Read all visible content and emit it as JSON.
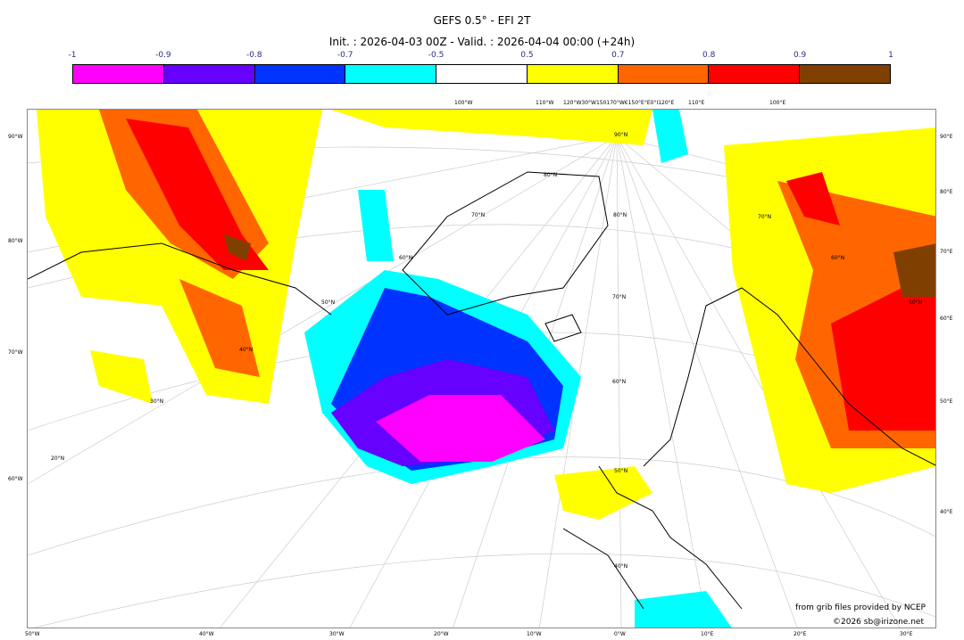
{
  "title": "GEFS 0.5° - EFI 2T",
  "subtitle": "Init. : 2026-04-03 00Z - Valid. : 2026-04-04 00:00 (+24h)",
  "colorbar": {
    "ticks": [
      "-1",
      "-0.9",
      "-0.8",
      "-0.7",
      "-0.5",
      "0.5",
      "0.7",
      "0.8",
      "0.9",
      "1"
    ],
    "colors": [
      "#ff00ff",
      "#6600ff",
      "#0033ff",
      "#00ffff",
      "#ffffff",
      "#ffff00",
      "#ff6600",
      "#ff0000",
      "#7f3f00"
    ]
  },
  "top_labels": [
    "100°W",
    "110°W",
    "120°W30°W150170°W€150°E°E0°I120°E",
    "110°E",
    "100°E"
  ],
  "left_labels": [
    "90°W",
    "80°W",
    "70°W",
    "60°W"
  ],
  "right_labels": [
    "90°E",
    "80°E",
    "70°E",
    "60°E",
    "50°E",
    "40°E"
  ],
  "bottom_labels": [
    "50°W",
    "40°W",
    "30°W",
    "20°W",
    "10°W",
    "0°W",
    "10°E",
    "20°E",
    "30°E"
  ],
  "lat_labels": [
    "90°N",
    "80°N",
    "70°N",
    "60°N",
    "50°N",
    "40°N",
    "30°N",
    "20°N",
    "80°N",
    "70°N",
    "60°N",
    "50°N",
    "40°N",
    "70°N",
    "60°N",
    "50°N"
  ],
  "credits": {
    "line1": "from grib files provided by NCEP",
    "line2": "©2026 sb@irizone.net"
  }
}
